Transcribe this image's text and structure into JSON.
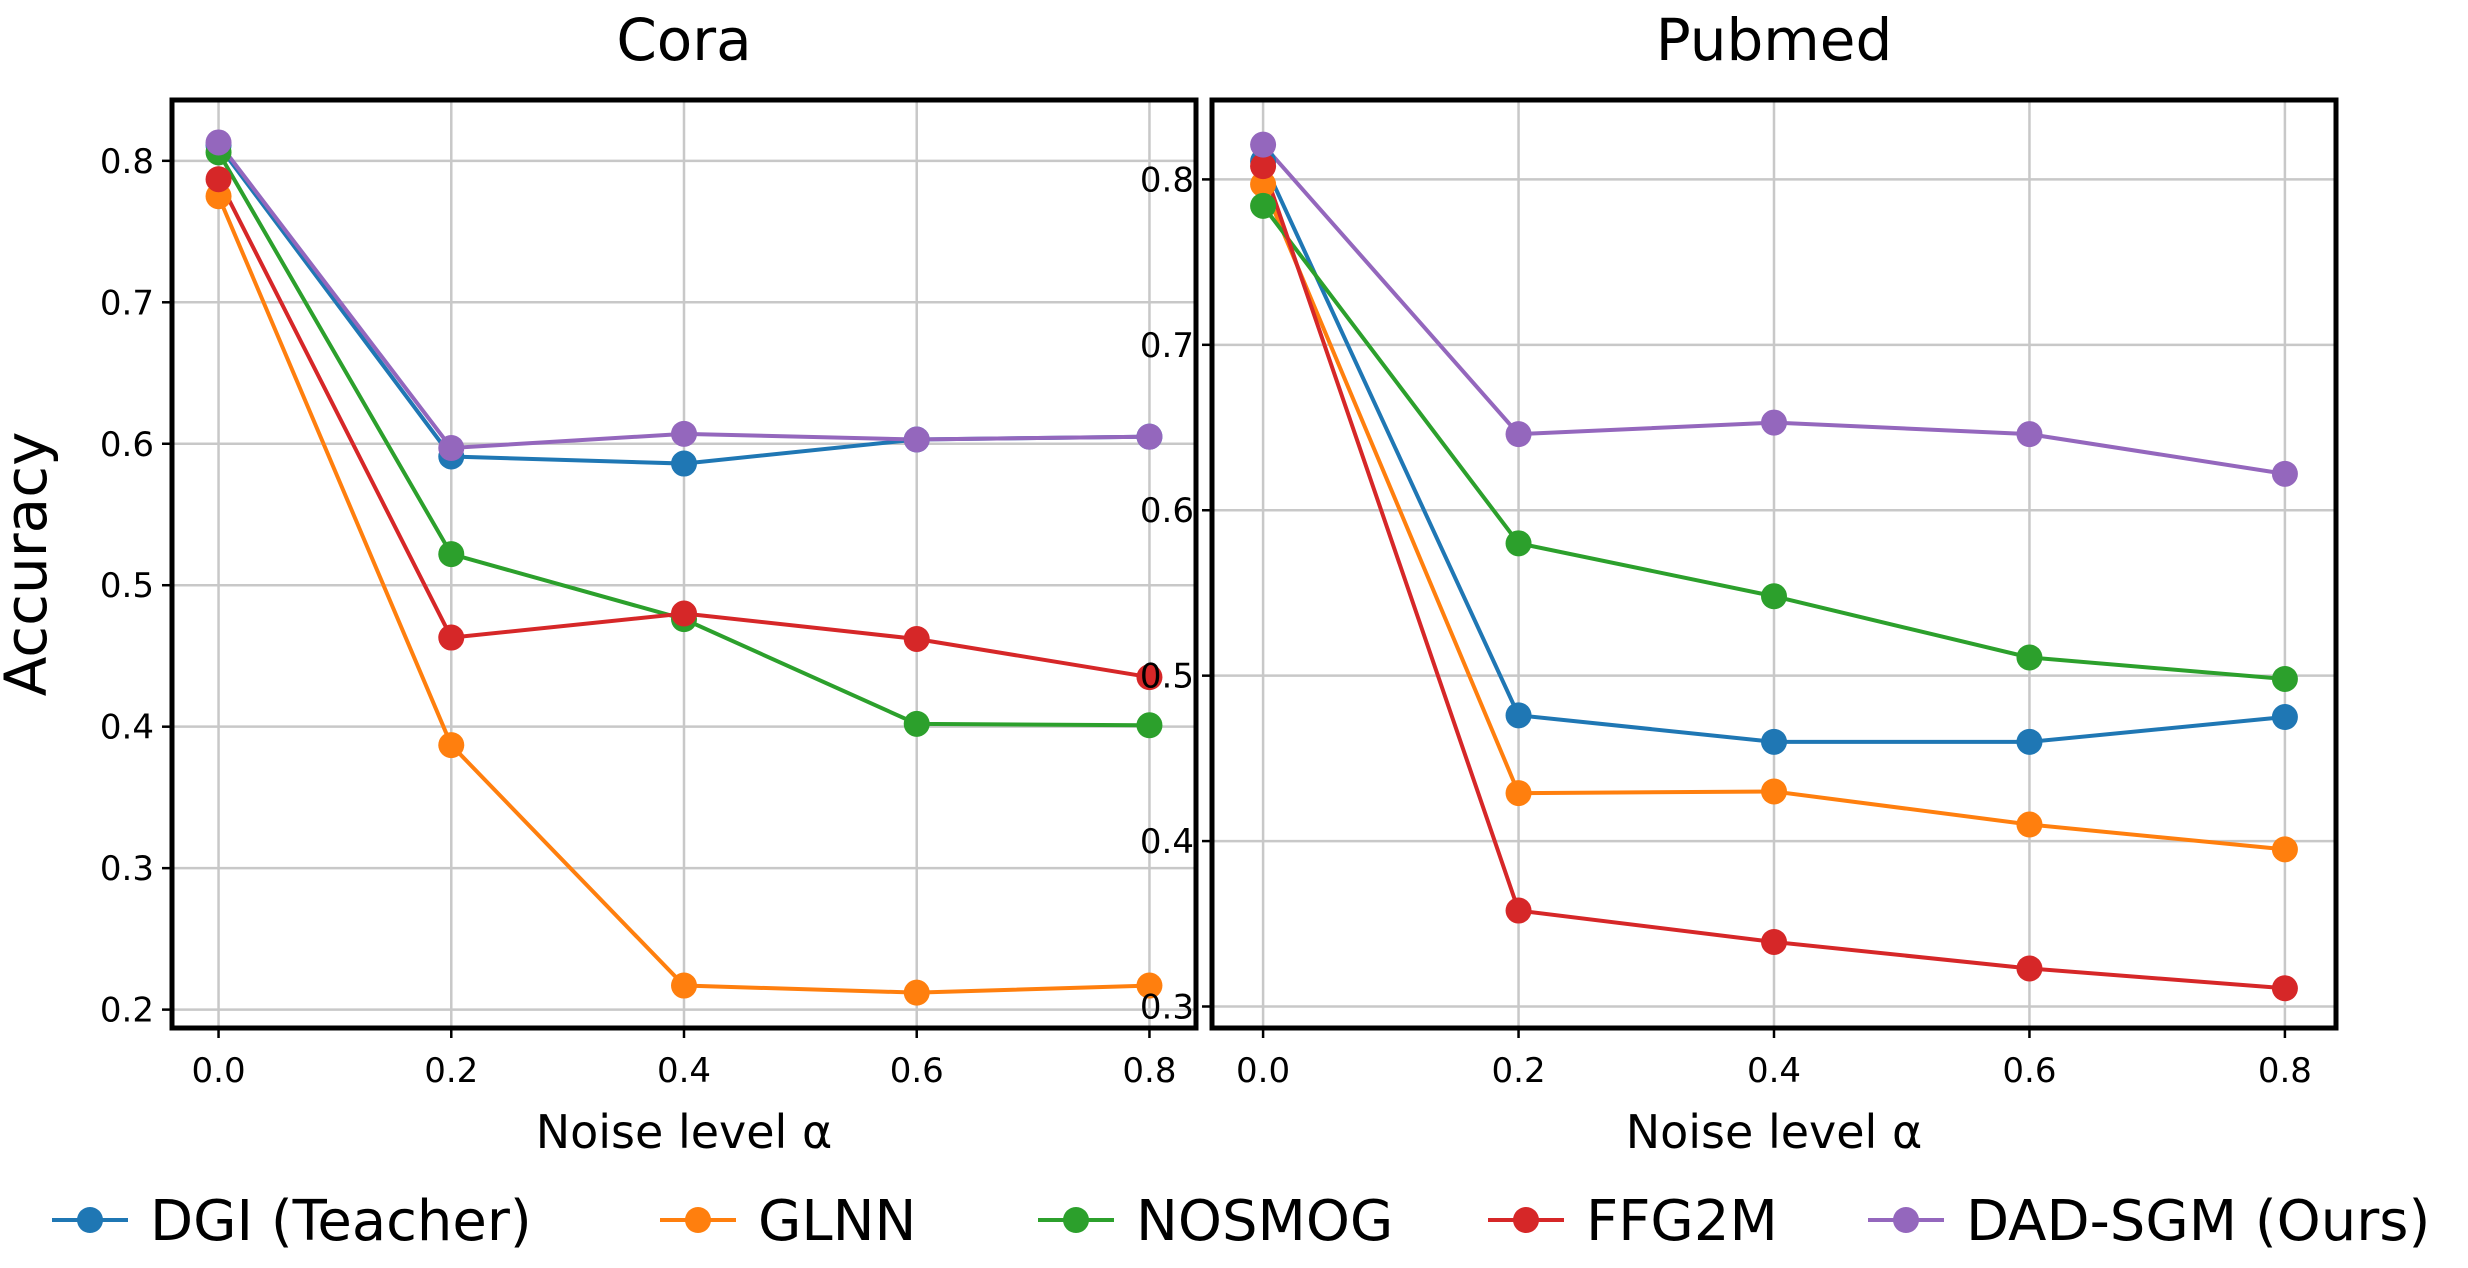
{
  "chart_data": [
    {
      "type": "line",
      "title": "Cora",
      "xlabel": "Noise level α",
      "ylabel": "Accuracy",
      "x": [
        0.0,
        0.2,
        0.4,
        0.6,
        0.8
      ],
      "xticks": [
        "0.0",
        "0.2",
        "0.4",
        "0.6",
        "0.8"
      ],
      "yticks": [
        "0.2",
        "0.3",
        "0.4",
        "0.5",
        "0.6",
        "0.7",
        "0.8"
      ],
      "ytick_values": [
        0.2,
        0.3,
        0.4,
        0.5,
        0.6,
        0.7,
        0.8
      ],
      "xlim": [
        -0.04,
        0.84
      ],
      "ylim": [
        0.187,
        0.843
      ],
      "grid": true,
      "series": [
        {
          "name": "DGI (Teacher)",
          "values": [
            0.811,
            0.591,
            0.586,
            0.603,
            0.605
          ]
        },
        {
          "name": "GLNN",
          "values": [
            0.775,
            0.387,
            0.217,
            0.212,
            0.217
          ]
        },
        {
          "name": "NOSMOG",
          "values": [
            0.806,
            0.522,
            0.476,
            0.402,
            0.401
          ]
        },
        {
          "name": "FFG2M",
          "values": [
            0.787,
            0.463,
            0.48,
            0.462,
            0.435
          ]
        },
        {
          "name": "DAD-SGM (Ours)",
          "values": [
            0.813,
            0.597,
            0.607,
            0.603,
            0.605
          ]
        }
      ]
    },
    {
      "type": "line",
      "title": "Pubmed",
      "xlabel": "Noise level α",
      "ylabel": "",
      "x": [
        0.0,
        0.2,
        0.4,
        0.6,
        0.8
      ],
      "xticks": [
        "0.0",
        "0.2",
        "0.4",
        "0.6",
        "0.8"
      ],
      "yticks": [
        "0.3",
        "0.4",
        "0.5",
        "0.6",
        "0.7",
        "0.8"
      ],
      "ytick_values": [
        0.3,
        0.4,
        0.5,
        0.6,
        0.7,
        0.8
      ],
      "xlim": [
        -0.04,
        0.84
      ],
      "ylim": [
        0.287,
        0.848
      ],
      "grid": true,
      "series": [
        {
          "name": "DGI (Teacher)",
          "values": [
            0.811,
            0.476,
            0.46,
            0.46,
            0.475
          ]
        },
        {
          "name": "GLNN",
          "values": [
            0.797,
            0.429,
            0.43,
            0.41,
            0.395
          ]
        },
        {
          "name": "NOSMOG",
          "values": [
            0.784,
            0.58,
            0.548,
            0.511,
            0.498
          ]
        },
        {
          "name": "FFG2M",
          "values": [
            0.808,
            0.358,
            0.339,
            0.323,
            0.311
          ]
        },
        {
          "name": "DAD-SGM (Ours)",
          "values": [
            0.821,
            0.646,
            0.653,
            0.646,
            0.622
          ]
        }
      ]
    }
  ],
  "legend": {
    "position": "bottom",
    "entries": [
      "DGI (Teacher)",
      "GLNN",
      "NOSMOG",
      "FFG2M",
      "DAD-SGM (Ours)"
    ]
  },
  "colors": {
    "DGI (Teacher)": "#1f77b4",
    "GLNN": "#ff7f0e",
    "NOSMOG": "#2ca02c",
    "FFG2M": "#d62728",
    "DAD-SGM (Ours)": "#9467bd"
  }
}
